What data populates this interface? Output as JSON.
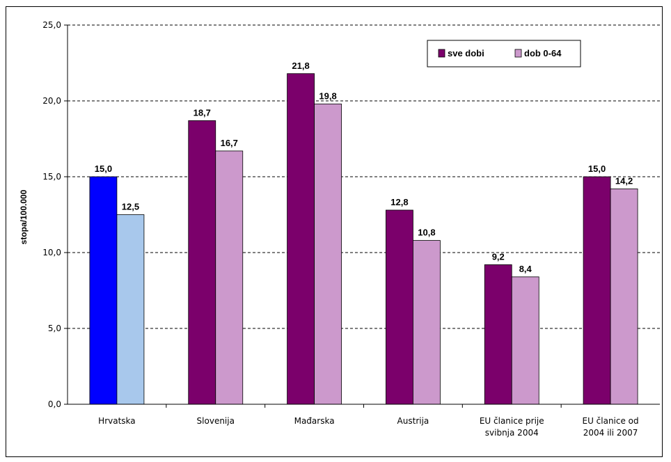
{
  "chart_data": {
    "type": "bar",
    "title": "",
    "xlabel": "",
    "ylabel": "stopa/100.000",
    "ylim": [
      0,
      25
    ],
    "yticks": [
      "0,0",
      "5,0",
      "10,0",
      "15,0",
      "20,0",
      "25,0"
    ],
    "grid": "horizontal dashed",
    "legend_position": "top-right",
    "categories": [
      [
        "Hrvatska"
      ],
      [
        "Slovenija"
      ],
      [
        "Mađarska"
      ],
      [
        "Austrija"
      ],
      [
        "EU članice prije",
        "svibnja 2004"
      ],
      [
        "EU članice od",
        "2004 ili 2007"
      ]
    ],
    "series": [
      {
        "name": "sve dobi",
        "values": [
          15.0,
          18.7,
          21.8,
          12.8,
          9.2,
          15.0
        ],
        "labels": [
          "15,0",
          "18,7",
          "21,8",
          "12,8",
          "9,2",
          "15,0"
        ],
        "color": "#7b006b",
        "highlight_color": "#0000ff"
      },
      {
        "name": "dob 0-64",
        "values": [
          12.5,
          16.7,
          19.8,
          10.8,
          8.4,
          14.2
        ],
        "labels": [
          "12,5",
          "16,7",
          "19,8",
          "10,8",
          "8,4",
          "14,2"
        ],
        "color": "#cc99cc",
        "highlight_color": "#a8c8ec"
      }
    ],
    "highlight_category_index": 0
  }
}
